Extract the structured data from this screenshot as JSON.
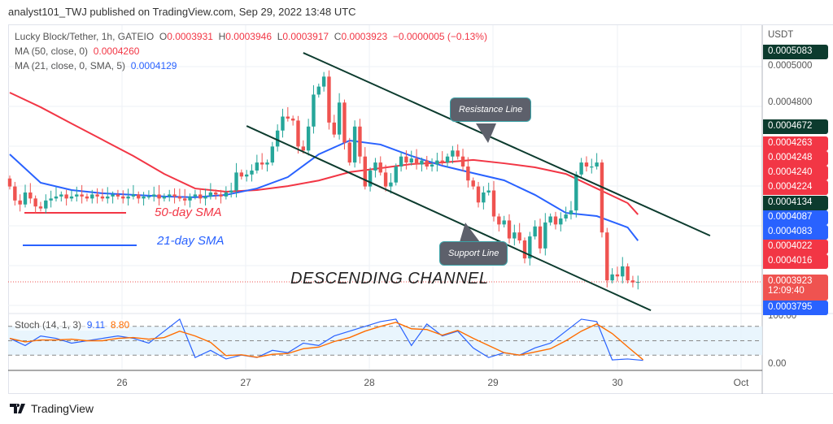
{
  "header": {
    "published": "analyst101_TWJ published on TradingView.com, Sep 29, 2022 13:48 UTC"
  },
  "legend": {
    "symbol": "Lucky Block/Tether, 1h, GATEIO",
    "o_label": "O",
    "o": "0.0003931",
    "h_label": "H",
    "h": "0.0003946",
    "l_label": "L",
    "l": "0.0003917",
    "c_label": "C",
    "c": "0.0003923",
    "change": "−0.0000005 (−0.13%)",
    "ma50_label": "MA (50, close, 0)",
    "ma50": "0.0004260",
    "ma21_label": "MA (21, close, 0, SMA, 5)",
    "ma21": "0.0004129",
    "stoch_label": "Stoch (14, 1, 3)",
    "stoch_k": "9.11",
    "stoch_d": "8.80"
  },
  "annotations": {
    "resistance": "Resistance Line",
    "support": "Support Line",
    "channel": "DESCENDING CHANNEL",
    "sma50": "50-day SMA",
    "sma21": "21-day SMA"
  },
  "price_axis": {
    "currency": "USDT",
    "labels": [
      "0.0005000",
      "0.0004800"
    ],
    "stoch_labels": [
      "100.00",
      "0.00"
    ],
    "tags": [
      {
        "text": "0.0005083",
        "color": "#0c3b2e"
      },
      {
        "text": "0.0004672",
        "color": "#0c3b2e"
      },
      {
        "text": "0.0004263",
        "color": "#f23645"
      },
      {
        "text": "0.0004248",
        "color": "#f23645"
      },
      {
        "text": "0.0004240",
        "color": "#f23645"
      },
      {
        "text": "0.0004224",
        "color": "#f23645"
      },
      {
        "text": "0.0004134",
        "color": "#0c3b2e"
      },
      {
        "text": "0.0004087",
        "color": "#2962ff"
      },
      {
        "text": "0.0004083",
        "color": "#2962ff"
      },
      {
        "text": "0.0004022",
        "color": "#f23645"
      },
      {
        "text": "0.0004016",
        "color": "#f23645"
      },
      {
        "text": "0.0003923",
        "color": "#ef5350",
        "sub": "12:09:40"
      },
      {
        "text": "0.0003795",
        "color": "#2962ff"
      }
    ]
  },
  "time_axis": {
    "labels": [
      "26",
      "27",
      "28",
      "29",
      "30",
      "Oct"
    ]
  },
  "footer": {
    "brand": "TradingView"
  },
  "colors": {
    "up": "#26a69a",
    "down": "#ef5350",
    "ma50": "#f23645",
    "ma21": "#2962ff",
    "channel": "#0c3b2e",
    "stoch_k": "#2962ff",
    "stoch_d": "#ff6d00"
  },
  "chart_data": {
    "type": "candlestick",
    "interval": "1h",
    "start": "2022-09-25 02:00",
    "ylabel": "USDT",
    "ylim": [
      0.000372,
      0.000515
    ],
    "closes": [
      0.00044,
      0.000433,
      0.000431,
      0.000437,
      0.000434,
      0.00043,
      0.000429,
      0.000433,
      0.000434,
      0.000435,
      0.000436,
      0.000434,
      0.000435,
      0.000436,
      0.000435,
      0.000434,
      0.000436,
      0.000435,
      0.000434,
      0.000435,
      0.000436,
      0.000435,
      0.000434,
      0.000435,
      0.000436,
      0.000434,
      0.000435,
      0.000435,
      0.000436,
      0.000434,
      0.000435,
      0.000436,
      0.000435,
      0.000434,
      0.000433,
      0.000435,
      0.000436,
      0.000434,
      0.000435,
      0.000437,
      0.000436,
      0.000435,
      0.000437,
      0.000438,
      0.000447,
      0.000445,
      0.000446,
      0.000448,
      0.000452,
      0.000451,
      0.000452,
      0.00046,
      0.000468,
      0.000475,
      0.000474,
      0.000473,
      0.00046,
      0.000458,
      0.00047,
      0.000486,
      0.00049,
      0.000495,
      0.000472,
      0.000466,
      0.000482,
      0.000462,
      0.000452,
      0.00047,
      0.000455,
      0.00044,
      0.000448,
      0.000452,
      0.000447,
      0.00044,
      0.000442,
      0.00045,
      0.000455,
      0.000452,
      0.000454,
      0.000451,
      0.000453,
      0.00045,
      0.000451,
      0.000453,
      0.000452,
      0.000455,
      0.000458,
      0.000455,
      0.00045,
      0.000443,
      0.00044,
      0.000432,
      0.000437,
      0.000438,
      0.000425,
      0.000421,
      0.000423,
      0.000414,
      0.000417,
      0.000413,
      0.000404,
      0.000415,
      0.00042,
      0.000409,
      0.000422,
      0.000425,
      0.000421,
      0.000424,
      0.000426,
      0.000428,
      0.000446,
      0.000452,
      0.00045,
      0.00045,
      0.000452,
      0.000417,
      0.000393,
      0.000396,
      0.000395,
      0.0004,
      0.000393,
      0.000392,
      0.0003923
    ],
    "ma50_every_6h": [
      0.000487,
      0.0004797,
      0.0004715,
      0.0004634,
      0.0004553,
      0.0004463,
      0.000439,
      0.0004374,
      0.0004382,
      0.0004402,
      0.000443,
      0.0004472,
      0.0004492,
      0.0004512,
      0.000452,
      0.0004533,
      0.0004516,
      0.0004496,
      0.0004463,
      0.000439,
      0.0004317,
      0.000426
    ],
    "ma21_every_6h": [
      0.0004561,
      0.0004419,
      0.0004382,
      0.0004366,
      0.0004358,
      0.000435,
      0.0004346,
      0.0004358,
      0.000439,
      0.0004447,
      0.0004561,
      0.000463,
      0.000461,
      0.0004553,
      0.0004504,
      0.0004467,
      0.0004431,
      0.0004358,
      0.0004268,
      0.0004252,
      0.0004195,
      0.0004129
    ],
    "resistance_line": [
      [
        57,
        0.0005069
      ],
      [
        136,
        0.0004154
      ]
    ],
    "support_line": [
      [
        46,
        0.0004703
      ],
      [
        124.5,
        0.000378
      ]
    ],
    "stoch": {
      "ylim": [
        0,
        100
      ],
      "bands": [
        20,
        50,
        80
      ],
      "k_every_3h": [
        55,
        40,
        60,
        55,
        45,
        50,
        55,
        60,
        55,
        45,
        70,
        95,
        15,
        30,
        12,
        20,
        15,
        30,
        25,
        45,
        40,
        60,
        70,
        80,
        90,
        95,
        40,
        85,
        60,
        70,
        35,
        15,
        25,
        20,
        35,
        45,
        70,
        95,
        90,
        10,
        12,
        9
      ]
    }
  }
}
